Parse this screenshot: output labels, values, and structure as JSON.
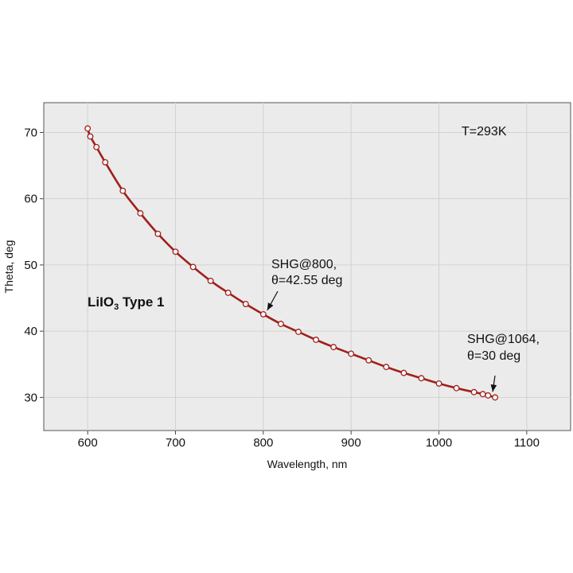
{
  "chart_data": {
    "type": "line",
    "xlabel": "Wavelength, nm",
    "ylabel": "Theta, deg",
    "xlim": [
      550,
      1150
    ],
    "ylim": [
      25,
      74.5
    ],
    "xticks": [
      600,
      700,
      800,
      900,
      1000,
      1100
    ],
    "yticks": [
      30,
      40,
      50,
      60,
      70
    ],
    "grid": true,
    "series": [
      {
        "color": "#a0201c",
        "marker": "open-circle",
        "points": [
          [
            600,
            70.6
          ],
          [
            603,
            69.4
          ],
          [
            610,
            67.8
          ],
          [
            620,
            65.5
          ],
          [
            640,
            61.2
          ],
          [
            660,
            57.8
          ],
          [
            680,
            54.7
          ],
          [
            700,
            52.0
          ],
          [
            720,
            49.7
          ],
          [
            740,
            47.6
          ],
          [
            760,
            45.8
          ],
          [
            780,
            44.1
          ],
          [
            800,
            42.55
          ],
          [
            820,
            41.1
          ],
          [
            840,
            39.9
          ],
          [
            860,
            38.7
          ],
          [
            880,
            37.6
          ],
          [
            900,
            36.6
          ],
          [
            920,
            35.6
          ],
          [
            940,
            34.6
          ],
          [
            960,
            33.7
          ],
          [
            980,
            32.9
          ],
          [
            1000,
            32.1
          ],
          [
            1020,
            31.4
          ],
          [
            1040,
            30.8
          ],
          [
            1050,
            30.5
          ],
          [
            1056,
            30.3
          ],
          [
            1064,
            30.0
          ]
        ]
      }
    ],
    "annotations": [
      {
        "lines": [
          "SHG@800,",
          "θ=42.55 deg"
        ],
        "target": [
          800,
          42.55
        ]
      },
      {
        "lines": [
          "SHG@1064,",
          "θ=30 deg"
        ],
        "target": [
          1064,
          30
        ]
      }
    ],
    "temperature_label": "T=293K",
    "crystal_label": {
      "main": "LiIO",
      "sub": "3",
      "suffix": " Type 1"
    }
  }
}
